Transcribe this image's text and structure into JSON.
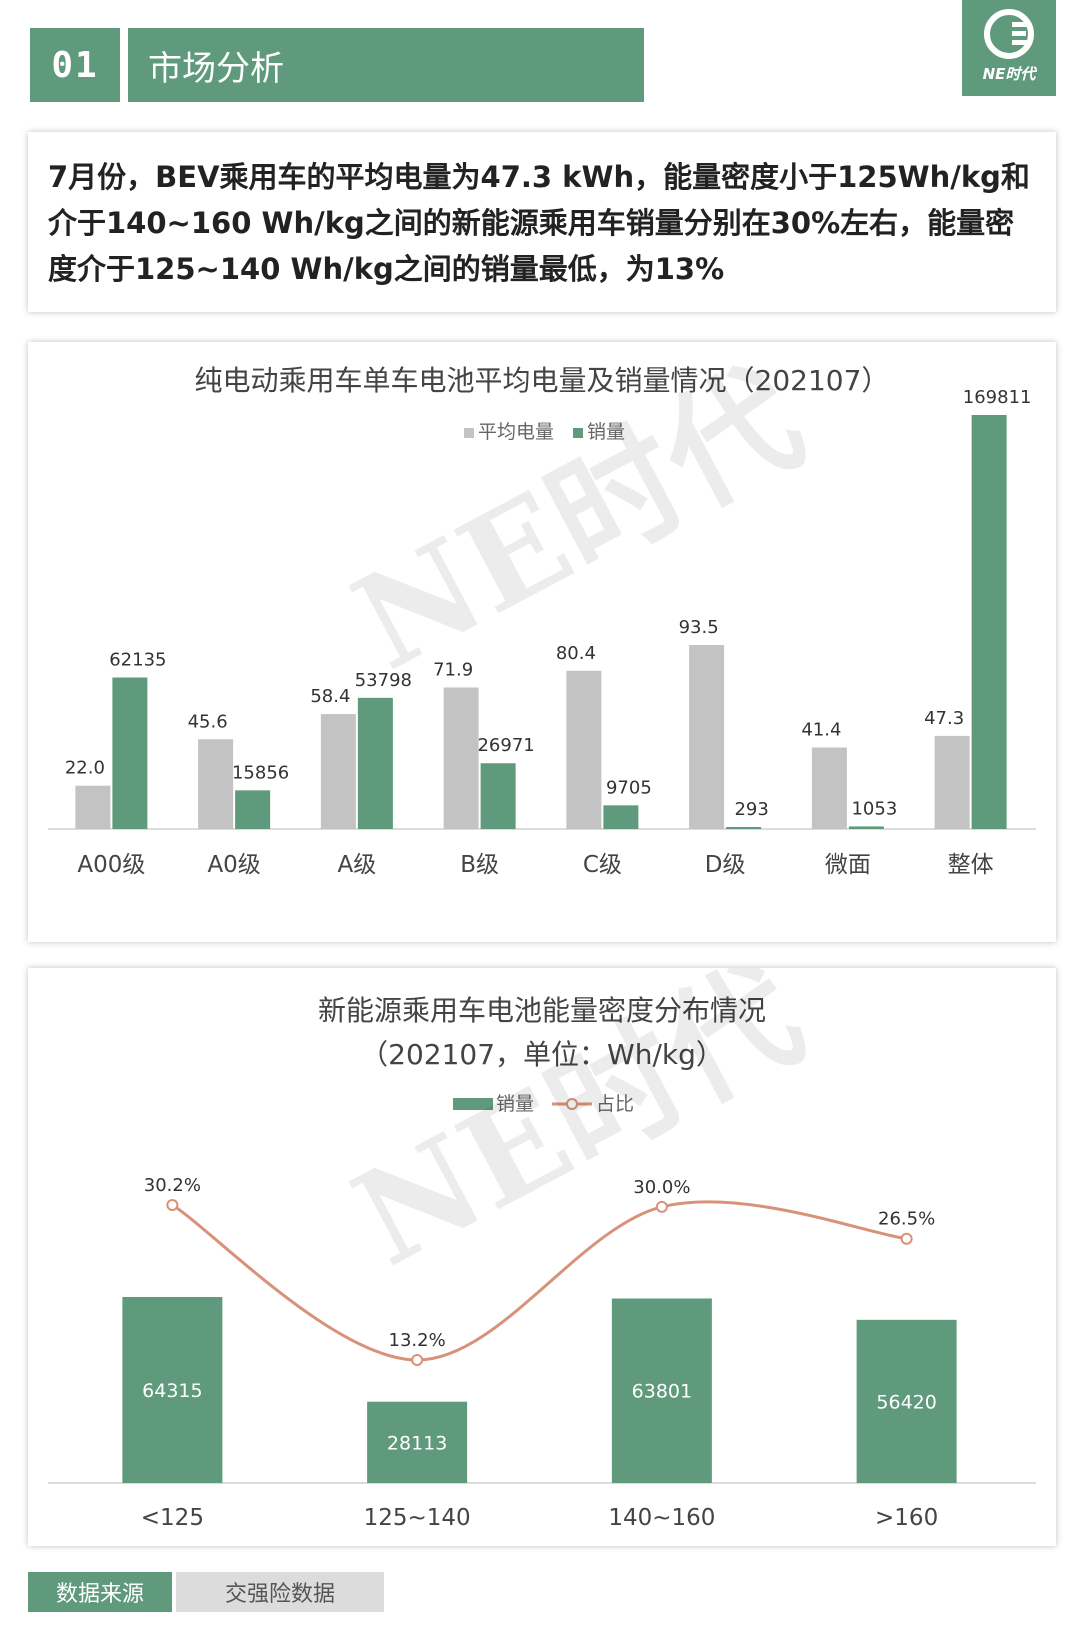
{
  "header": {
    "number": "01",
    "title": "市场分析",
    "logo_text": "NE时代"
  },
  "summary": {
    "text": "7月份，BEV乘用车的平均电量为47.3 kWh，能量密度小于125Wh/kg和介于140~160 Wh/kg之间的新能源乘用车销量分别在30%左右，能量密度介于125~140 Wh/kg之间的销量最低，为13%"
  },
  "watermark": "NE时代",
  "colors": {
    "green": "#5f9a7d",
    "gray": "#c3c3c3",
    "line": "#d8927a"
  },
  "chart_data": [
    {
      "type": "bar",
      "title": "纯电动乘用车单车电池平均电量及销量情况（202107）",
      "categories": [
        "A00级",
        "A0级",
        "A级",
        "B级",
        "C级",
        "D级",
        "微面",
        "整体"
      ],
      "series": [
        {
          "name": "平均电量",
          "values": [
            22.0,
            45.6,
            58.4,
            71.9,
            80.4,
            93.5,
            41.4,
            47.3
          ],
          "labels": [
            "22.0",
            "45.6",
            "58.4",
            "71.9",
            "80.4",
            "93.5",
            "41.4",
            "47.3"
          ]
        },
        {
          "name": "销量",
          "values": [
            62135,
            15856,
            53798,
            26971,
            9705,
            293,
            1053,
            169811
          ],
          "labels": [
            "62135",
            "15856",
            "53798",
            "26971",
            "9705",
            "293",
            "1053",
            "169811"
          ]
        }
      ],
      "legend": "top-center",
      "grid": false
    },
    {
      "type": "bar",
      "title": "新能源乘用车电池能量密度分布情况",
      "subtitle": "（202107，单位：Wh/kg）",
      "categories": [
        "<125",
        "125~140",
        "140~160",
        ">160"
      ],
      "series": [
        {
          "name": "销量",
          "type": "bar",
          "values": [
            64315,
            28113,
            63801,
            56420
          ],
          "labels": [
            "64315",
            "28113",
            "63801",
            "56420"
          ]
        },
        {
          "name": "占比",
          "type": "line",
          "values": [
            30.2,
            13.2,
            30.0,
            26.5
          ],
          "labels": [
            "30.2%",
            "13.2%",
            "30.0%",
            "26.5%"
          ]
        }
      ],
      "legend": "top-center",
      "grid": false
    }
  ],
  "source": {
    "label": "数据来源",
    "value": "交强险数据"
  }
}
